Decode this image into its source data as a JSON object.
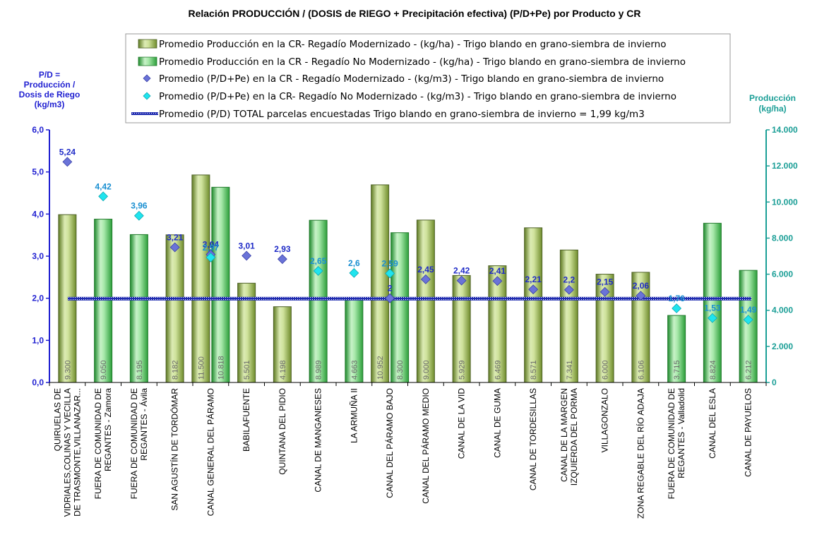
{
  "chart_data": {
    "type": "bar",
    "title": "Relación PRODUCCIÓN / (DOSIS de RIEGO + Precipitación efectiva)  (P/D+Pe) por Producto y CR",
    "y_left_label": [
      "P/D =",
      "Producción /",
      "Dosis  de Riego",
      "(kg/m3)"
    ],
    "y_right_label": [
      "Producción",
      "(kg/ha)"
    ],
    "y_left_range": [
      0,
      6
    ],
    "y_right_range": [
      0,
      14000
    ],
    "y_left_ticks": [
      "0,0",
      "1,0",
      "2,0",
      "3,0",
      "4,0",
      "5,0",
      "6,0"
    ],
    "y_right_ticks": [
      "0",
      "2.000",
      "4.000",
      "6.000",
      "8.000",
      "10.000",
      "12.000",
      "14.000"
    ],
    "legend": [
      "Promedio Producción en la CR- Regadío Modernizado -  (kg/ha) - Trigo blando en grano-siembra de invierno",
      "Promedio Producción en la CR - Regadío No Modernizado -  (kg/ha) - Trigo blando en grano-siembra de invierno",
      "Promedio (P/D+Pe) en la CR - Regadío Modernizado - (kg/m3) - Trigo blando en grano-siembra de invierno",
      "Promedio (P/D+Pe) en la CR- Regadío No Modernizado - (kg/m3) - Trigo blando en grano-siembra de invierno",
      "Promedio (P/D) TOTAL parcelas encuestadas Trigo blando en grano-siembra de invierno = 1,99 kg/m3"
    ],
    "categories": [
      [
        "QUIRUELAS DE",
        "VIDRIALES,COLINAS Y VECILLA",
        "DE TRASMONTE,VILLANAZAR..."
      ],
      [
        "FUERA DE COMUNIDAD DE",
        "REGANTES - Zamora"
      ],
      [
        "FUERA DE COMUNIDAD DE",
        "REGANTES - Ávila"
      ],
      [
        "SAN AGUSTÍN DE TORDÓMAR"
      ],
      [
        "CANAL GENERAL DEL PÁRAMO"
      ],
      [
        "BABILAFUENTE"
      ],
      [
        "QUINTANA DEL PIDIO"
      ],
      [
        "CANAL DE MANGANESES"
      ],
      [
        "LA ARMUÑA II"
      ],
      [
        "CANAL DEL PÁRAMO BAJO"
      ],
      [
        "CANAL DEL PÁRAMO MEDIO"
      ],
      [
        "CANAL DE LA VID"
      ],
      [
        "CANAL DE GUMA"
      ],
      [
        "CANAL DE TORDESILLAS"
      ],
      [
        "CANAL DE LA MARGEN",
        "IZQUIERDA DEL PORMA"
      ],
      [
        "VILLAGONZALO"
      ],
      [
        "ZONA REGABLE DEL RÍO ADAJA"
      ],
      [
        "FUERA DE COMUNIDAD DE",
        "REGANTES - Valladolid"
      ],
      [
        "CANAL DEL ESLA"
      ],
      [
        "CANAL DE PAYUELOS"
      ]
    ],
    "series": [
      {
        "kind": "bar",
        "values": [
          9300,
          null,
          null,
          8182,
          11500,
          5501,
          4198,
          null,
          null,
          10952,
          9000,
          5929,
          6469,
          8571,
          7341,
          6000,
          6106,
          null,
          null,
          null
        ],
        "labels": [
          "9.300",
          "",
          "",
          "8.182",
          "11.500",
          "5.501",
          "4.198",
          "",
          "",
          "10.952",
          "9.000",
          "5.929",
          "6.469",
          "8.571",
          "7.341",
          "6.000",
          "6.106",
          "",
          "",
          ""
        ]
      },
      {
        "kind": "bar",
        "values": [
          null,
          9050,
          8195,
          null,
          10818,
          null,
          null,
          8989,
          4663,
          8300,
          null,
          null,
          null,
          null,
          null,
          null,
          null,
          3715,
          8824,
          6212
        ],
        "labels": [
          "",
          "9.050",
          "8.195",
          "",
          "10.818",
          "",
          "",
          "8.989",
          "4.663",
          "8.300",
          "",
          "",
          "",
          "",
          "",
          "",
          "",
          "3.715",
          "8.824",
          "6.212"
        ]
      },
      {
        "kind": "point",
        "values": [
          5.24,
          null,
          null,
          3.21,
          3.04,
          3.01,
          2.93,
          null,
          null,
          2,
          2.45,
          2.42,
          2.41,
          2.21,
          2.2,
          2.15,
          2.06,
          null,
          null,
          null
        ],
        "labels": [
          "5,24",
          "",
          "",
          "3,21",
          "3,04",
          "3,01",
          "2,93",
          "",
          "",
          "2",
          "2,45",
          "2,42",
          "2,41",
          "2,21",
          "2,2",
          "2,15",
          "2,06",
          "",
          "",
          ""
        ]
      },
      {
        "kind": "point",
        "values": [
          null,
          4.42,
          3.96,
          null,
          2.97,
          null,
          null,
          2.65,
          2.6,
          2.59,
          null,
          null,
          null,
          null,
          null,
          null,
          null,
          1.76,
          1.53,
          1.49
        ],
        "labels": [
          "",
          "4,42",
          "3,96",
          "",
          "2,97",
          "",
          "",
          "2,65",
          "2,6",
          "2,59",
          "",
          "",
          "",
          "",
          "",
          "",
          "",
          "1,76",
          "1,53",
          "1,49"
        ]
      },
      {
        "kind": "reference_line",
        "value": 1.99
      }
    ],
    "colors": {
      "bar_modernizado": "#9bbb59",
      "bar_no_modernizado": "#4fc35f",
      "point_modernizado": "#6a73d8",
      "point_no_modernizado": "#1fe4ee",
      "reference_line": "#1f2bb0",
      "left_axis": "#1f1fd1",
      "right_axis": "#1a9e96"
    },
    "grid": false,
    "legend_position": "top"
  }
}
